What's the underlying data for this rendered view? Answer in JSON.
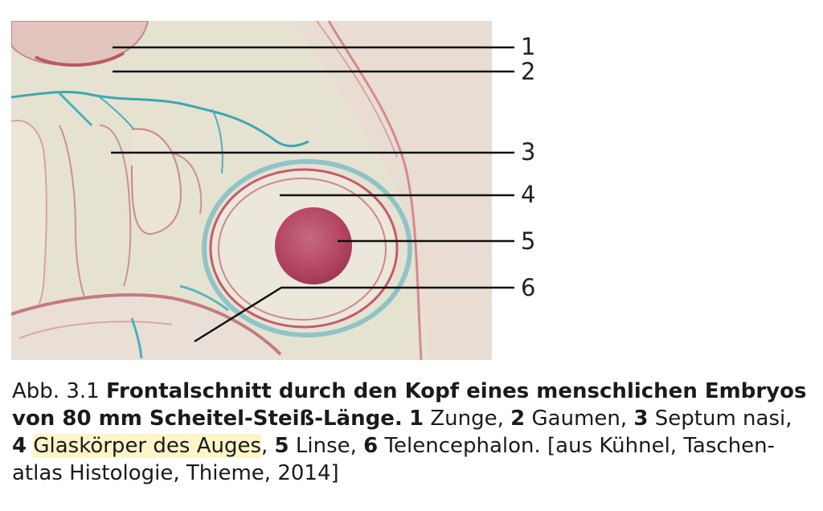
{
  "figure": {
    "alt": "Histologischer Frontalschnitt",
    "labels": [
      "1",
      "2",
      "3",
      "4",
      "5",
      "6"
    ]
  },
  "caption": {
    "prefix": "Abb. 3.1 ",
    "title_line1": "Frontalschnitt durch den Kopf eines menschlichen Embryos",
    "title_line2": "von 80 mm Scheitel-Steiß-Länge.",
    "items": [
      {
        "num": "1",
        "text": " Zunge, "
      },
      {
        "num": "2",
        "text": " Gaumen, "
      },
      {
        "num": "3",
        "text": " Septum nasi,"
      },
      {
        "num": "4",
        "text": "Glaskörper des Auges"
      },
      {
        "num": "5",
        "text": " Linse, "
      },
      {
        "num": "6",
        "text": " Telencephalon. [aus Kühnel, Taschen-"
      }
    ],
    "line4": "atlas Histologie, Thieme, 2014]",
    "highlight_color": "#fdf4c8"
  }
}
